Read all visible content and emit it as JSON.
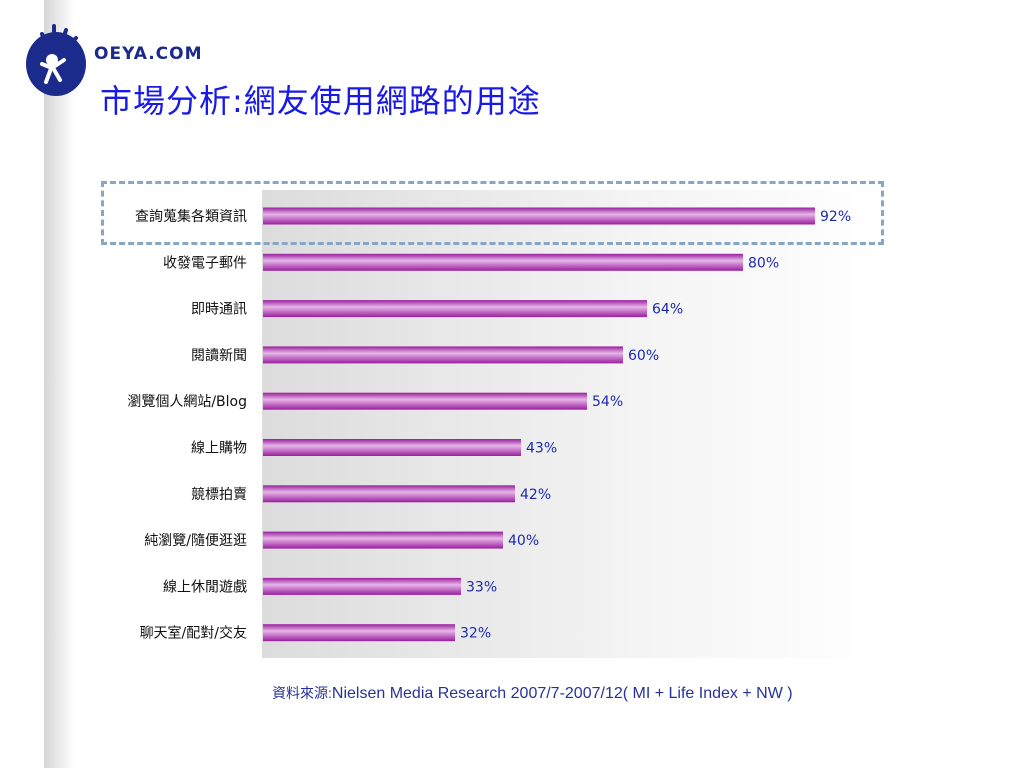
{
  "header": {
    "brand": "OEYA.COM",
    "title": "市場分析:網友使用網路的用途"
  },
  "footer": {
    "source_label": "資料來源:",
    "source_text": "Nielsen Media Research 2007/7-2007/12( MI + Life Index + NW )"
  },
  "colors": {
    "bar": "#9a1e9e",
    "bar_highlight": "#e6b6e8",
    "value_label": "#1c2ab0",
    "title": "#1a1ae6",
    "highlight_box": "#87a5c4"
  },
  "chart_data": {
    "type": "bar",
    "orientation": "horizontal",
    "categories": [
      "查詢蒐集各類資訊",
      "收發電子郵件",
      "即時通訊",
      "閱讀新聞",
      "瀏覽個人網站/Blog",
      "線上購物",
      "競標拍賣",
      "純瀏覽/隨便逛逛",
      "線上休閒遊戲",
      "聊天室/配對/交友"
    ],
    "values": [
      92,
      80,
      64,
      60,
      54,
      43,
      42,
      40,
      33,
      32
    ],
    "value_labels": [
      "92%",
      "80%",
      "64%",
      "60%",
      "54%",
      "43%",
      "42%",
      "40%",
      "33%",
      "32%"
    ],
    "unit": "%",
    "highlighted_category": "查詢蒐集各類資訊",
    "grid": false
  }
}
